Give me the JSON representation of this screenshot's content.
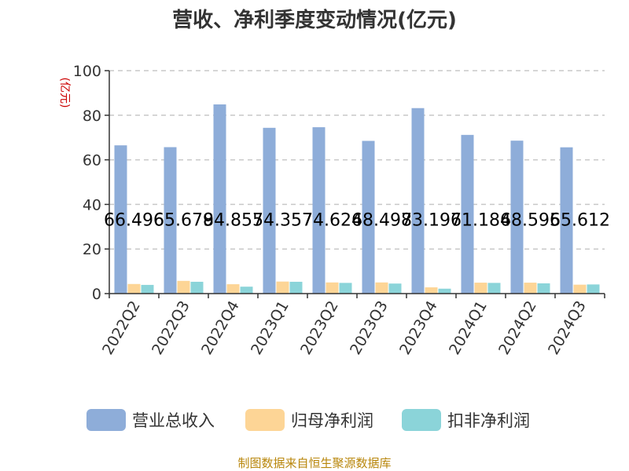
{
  "colors": {
    "revenue": "#8eadd9",
    "parent_profit": "#fdd596",
    "deducted_profit": "#8bd4d9",
    "source": "#b8860b",
    "unit": "#cc0000"
  },
  "chart_data": {
    "type": "bar",
    "title": "营收、净利季度变动情况(亿元)",
    "unit_label": "(亿元)",
    "categories": [
      "2022Q2",
      "2022Q3",
      "2022Q4",
      "2023Q1",
      "2023Q2",
      "2023Q3",
      "2023Q4",
      "2024Q1",
      "2024Q2",
      "2024Q3"
    ],
    "series": [
      {
        "name": "营业总收入",
        "values": [
          66.496,
          65.679,
          84.855,
          74.357,
          74.624,
          68.497,
          83.196,
          71.184,
          68.595,
          65.612
        ]
      },
      {
        "name": "归母净利润",
        "values": [
          4.3,
          5.7,
          4.2,
          5.4,
          5.0,
          5.0,
          2.8,
          4.9,
          4.9,
          4.0
        ]
      },
      {
        "name": "扣非净利润",
        "values": [
          3.9,
          5.3,
          3.1,
          5.3,
          4.8,
          4.5,
          2.2,
          4.8,
          4.6,
          4.1
        ]
      }
    ],
    "data_labels": [
      "66.496",
      "65.679",
      "84.855",
      "74.357",
      "74.624",
      "68.497",
      "83.196",
      "71.184",
      "68.595",
      "65.612"
    ],
    "ylim": [
      0,
      100
    ],
    "yticks": [
      0,
      20,
      40,
      60,
      80,
      100
    ],
    "grid": true,
    "legend_position": "bottom"
  },
  "source_text": "制图数据来自恒生聚源数据库"
}
